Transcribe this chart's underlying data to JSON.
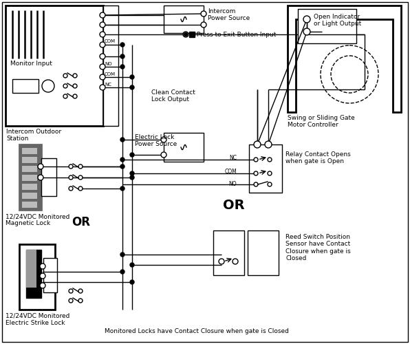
{
  "bg": "#ffffff",
  "lc": "#000000",
  "gray_dark": "#666666",
  "gray_med": "#999999",
  "gray_light": "#bbbbbb",
  "lw": 1.0,
  "lw2": 2.0,
  "labels": {
    "monitor_input": "Monitor Input",
    "intercom_outdoor": "Intercom Outdoor\nStation",
    "intercom_power": "Intercom\nPower Source",
    "press_exit": "Press to Exit Button Input",
    "clean_contact": "Clean Contact\nLock Output",
    "elec_lock_pwr": "Electric Lock\nPower Source",
    "swing_gate": "Swing or Sliding Gate\nMotor Controller",
    "open_indicator": "Open Indicator\nor Light Output",
    "relay_opens": "Relay Contact Opens\nwhen gate is Open",
    "reed_switch": "Reed Switch Position\nSensor have Contact\nClosure when gate is\nClosed",
    "mag_lock": "12/24VDC Monitored\nMagnetic Lock",
    "elec_strike": "12/24VDC Monitored\nElectric Strike Lock",
    "OR_mid": "OR",
    "OR_bot": "OR",
    "footer": "Monitored Locks have Contact Closure when gate is Closed",
    "NC": "NC",
    "COM": "COM",
    "NO": "NO"
  }
}
